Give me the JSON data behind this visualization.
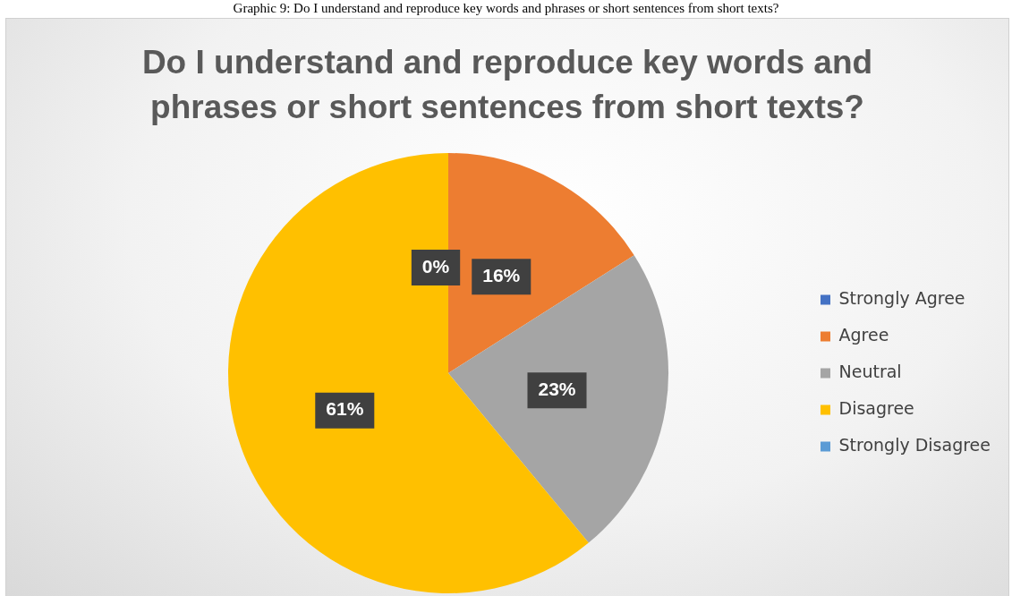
{
  "chart_data": {
    "type": "pie",
    "title": "Do I understand and reproduce key words and phrases or short sentences from short texts?",
    "annotations": [
      "Graphic 9: Do I understand and reproduce key words and phrases or short sentences from short texts?"
    ],
    "categories": [
      "Strongly Agree",
      "Agree",
      "Neutral",
      "Disagree",
      "Strongly Disagree"
    ],
    "values": [
      0,
      16,
      23,
      61,
      0
    ],
    "colors": [
      "#4472c4",
      "#ed7d31",
      "#a5a5a5",
      "#ffc000",
      "#5b9bd5"
    ],
    "value_labels": [
      "0%",
      "16%",
      "23%",
      "61%",
      null
    ],
    "legend": "right"
  }
}
